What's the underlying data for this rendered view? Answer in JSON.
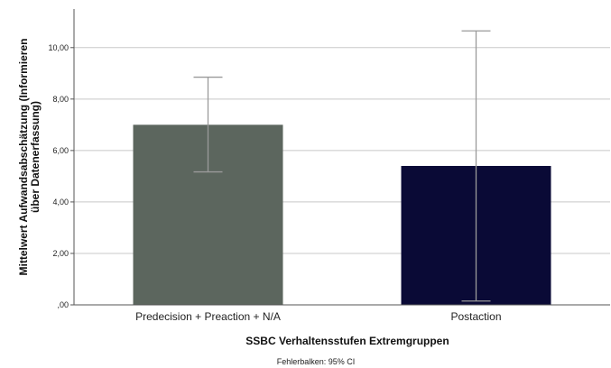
{
  "chart_data": {
    "type": "bar",
    "title": "",
    "xlabel": "SSBC Verhaltensstufen Extremgruppen",
    "ylabel_lines": [
      "Mittelwert Aufwandsabschätzung (Informieren",
      "über Datenerfassung)"
    ],
    "ylim": [
      0,
      11.5
    ],
    "yticks": [
      0,
      2,
      4,
      6,
      8,
      10
    ],
    "ytick_labels": [
      ",00",
      "2,00",
      "4,00",
      "6,00",
      "8,00",
      "10,00"
    ],
    "grid": true,
    "categories": [
      "Predecision + Preaction + N/A",
      "Postaction"
    ],
    "values": [
      7.0,
      5.4
    ],
    "error_low": [
      5.17,
      0.15
    ],
    "error_high": [
      8.85,
      10.65
    ],
    "colors": [
      "#5c665e",
      "#0a0a36"
    ],
    "footnote": "Fehlerbalken: 95% CI"
  }
}
